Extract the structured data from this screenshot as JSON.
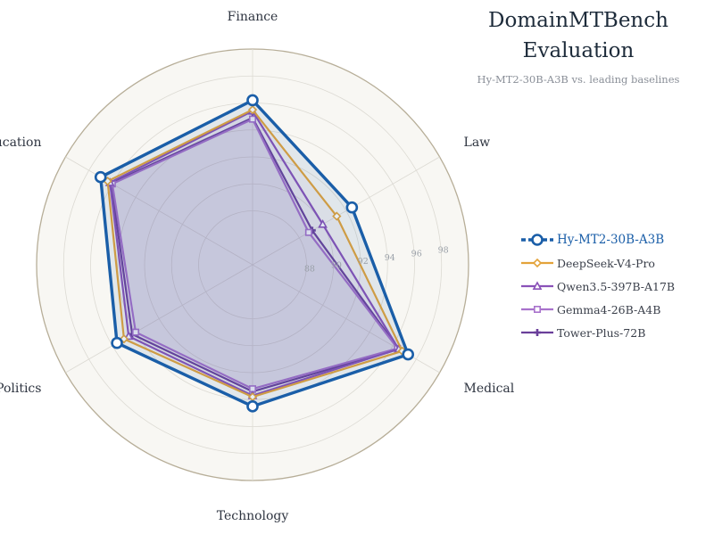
{
  "chart_data": {
    "type": "radar",
    "title_lines": [
      "DomainMTBench",
      "Evaluation"
    ],
    "subtitle": "Hy-MT2-30B-A3B vs. leading baselines",
    "axes": [
      "Finance",
      "Law",
      "Medical",
      "Technology",
      "Politics",
      "Education"
    ],
    "radial_range": [
      84,
      100
    ],
    "radial_ticks": [
      88,
      90,
      92,
      94,
      96,
      98
    ],
    "series": [
      {
        "name": "Hy-MT2-30B-A3B",
        "values": [
          96.2,
          92.5,
          97.3,
          94.5,
          95.6,
          97.0
        ],
        "color": "#1a5ea8",
        "marker": "circle"
      },
      {
        "name": "DeepSeek-V4-Pro",
        "values": [
          95.5,
          91.2,
          96.8,
          93.8,
          95.0,
          96.4
        ],
        "color": "#e3a33a",
        "marker": "diamond"
      },
      {
        "name": "Qwen3.5-397B-A17B",
        "values": [
          95.4,
          90.0,
          96.5,
          93.7,
          94.6,
          96.2
        ],
        "color": "#8a52b8",
        "marker": "triangle"
      },
      {
        "name": "Gemma4-26B-A4B",
        "values": [
          94.8,
          88.8,
          96.4,
          93.2,
          94.0,
          96.0
        ],
        "color": "#a872cc",
        "marker": "square"
      },
      {
        "name": "Tower-Plus-72B",
        "values": [
          94.9,
          89.1,
          96.5,
          93.4,
          94.3,
          96.1
        ],
        "color": "#6a3f9a",
        "marker": "plus"
      }
    ],
    "grid": true,
    "legend_position": "right"
  }
}
